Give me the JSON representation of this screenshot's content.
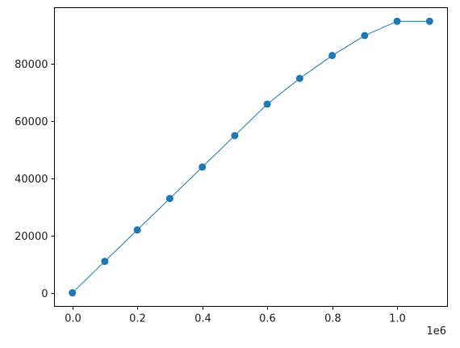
{
  "chart_data": {
    "type": "line",
    "title": "",
    "xlabel": "",
    "ylabel": "",
    "x_offset_text": "1e6",
    "x": [
      0,
      100000,
      200000,
      300000,
      400000,
      500000,
      600000,
      700000,
      800000,
      900000,
      1000000,
      1100000
    ],
    "series": [
      {
        "values": [
          0,
          11000,
          22000,
          33000,
          44000,
          55000,
          66000,
          75000,
          83000,
          90000,
          95000,
          95000
        ],
        "color": "#1f77b4",
        "marker": "circle"
      }
    ],
    "xlim": [
      -55000,
      1155000
    ],
    "ylim": [
      -4750,
      99750
    ],
    "xticks": [
      0,
      200000,
      400000,
      600000,
      800000,
      1000000
    ],
    "xtick_labels": [
      "0.0",
      "0.2",
      "0.4",
      "0.6",
      "0.8",
      "1.0"
    ],
    "yticks": [
      0,
      20000,
      40000,
      60000,
      80000
    ],
    "ytick_labels": [
      "0",
      "20000",
      "40000",
      "60000",
      "80000"
    ],
    "grid": false,
    "legend": "none"
  }
}
